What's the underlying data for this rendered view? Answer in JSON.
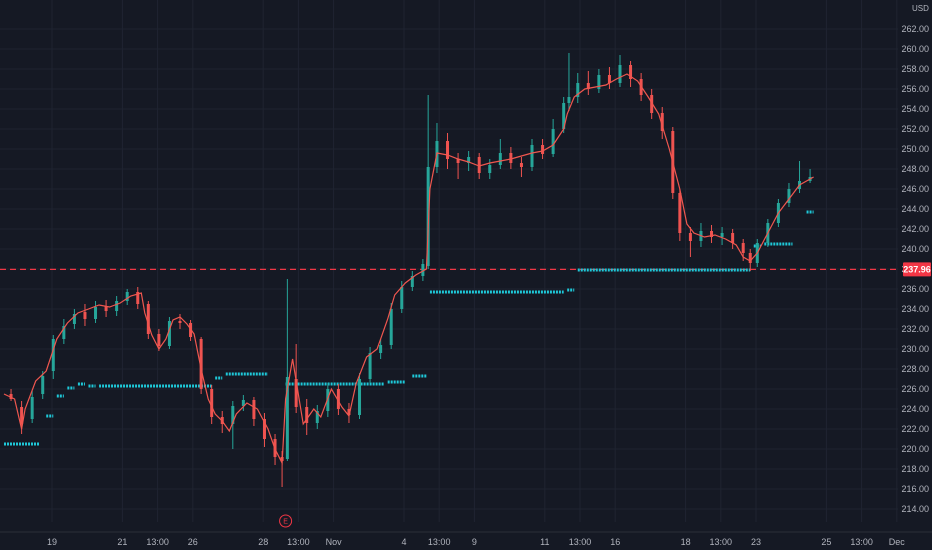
{
  "chart_data": {
    "type": "candlestick",
    "currency_label": "USD",
    "y_axis": {
      "min": 212,
      "max": 264,
      "ticks": [
        "262.00",
        "260.00",
        "258.00",
        "256.00",
        "254.00",
        "252.00",
        "250.00",
        "248.00",
        "246.00",
        "244.00",
        "242.00",
        "240.00",
        "238.00",
        "236.00",
        "234.00",
        "232.00",
        "230.00",
        "228.00",
        "226.00",
        "224.00",
        "222.00",
        "220.00",
        "218.00",
        "216.00",
        "214.00"
      ]
    },
    "x_axis": {
      "ticks": [
        {
          "label": "19",
          "pos": 0
        },
        {
          "label": "21",
          "pos": 2
        },
        {
          "label": "13:00",
          "pos": 3
        },
        {
          "label": "26",
          "pos": 4
        },
        {
          "label": "28",
          "pos": 6
        },
        {
          "label": "13:00",
          "pos": 7
        },
        {
          "label": "Nov",
          "pos": 8
        },
        {
          "label": "4",
          "pos": 10
        },
        {
          "label": "13:00",
          "pos": 11
        },
        {
          "label": "9",
          "pos": 12
        },
        {
          "label": "11",
          "pos": 14
        },
        {
          "label": "13:00",
          "pos": 15
        },
        {
          "label": "16",
          "pos": 16
        },
        {
          "label": "18",
          "pos": 18
        },
        {
          "label": "13:00",
          "pos": 19
        },
        {
          "label": "23",
          "pos": 20
        },
        {
          "label": "25",
          "pos": 22
        },
        {
          "label": "13:00",
          "pos": 23
        },
        {
          "label": "Dec",
          "pos": 24
        }
      ],
      "range": [
        0,
        27
      ]
    },
    "reference_line": {
      "value": 237.96,
      "label": "237.96",
      "color": "#f23645"
    },
    "earnings_marker": {
      "label": "E",
      "pos": 8
    },
    "colors": {
      "up": "#26a69a",
      "down": "#ef5350",
      "line": "#f0574f",
      "dots": "#1ec8d8",
      "grid": "#1f2431"
    },
    "price_path": [
      [
        0.0,
        225.5
      ],
      [
        0.3,
        225.0
      ],
      [
        0.5,
        222.0
      ],
      [
        0.6,
        224.0
      ],
      [
        0.9,
        226.8
      ],
      [
        1.2,
        227.8
      ],
      [
        1.5,
        231.0
      ],
      [
        1.8,
        232.6
      ],
      [
        2.1,
        233.6
      ],
      [
        2.4,
        234.0
      ],
      [
        2.7,
        234.4
      ],
      [
        3.0,
        234.2
      ],
      [
        3.3,
        234.6
      ],
      [
        3.6,
        235.3
      ],
      [
        3.9,
        235.6
      ],
      [
        4.0,
        233.6
      ],
      [
        4.2,
        231.4
      ],
      [
        4.4,
        230.0
      ],
      [
        4.6,
        231.0
      ],
      [
        4.8,
        232.9
      ],
      [
        5.0,
        233.2
      ],
      [
        5.2,
        232.5
      ],
      [
        5.4,
        231.5
      ],
      [
        5.6,
        228.0
      ],
      [
        5.8,
        225.0
      ],
      [
        6.0,
        223.5
      ],
      [
        6.2,
        222.8
      ],
      [
        6.4,
        221.8
      ],
      [
        6.6,
        223.5
      ],
      [
        6.9,
        224.6
      ],
      [
        7.2,
        224.0
      ],
      [
        7.5,
        222.0
      ],
      [
        7.7,
        220.0
      ],
      [
        7.9,
        218.6
      ],
      [
        8.0,
        225.0
      ],
      [
        8.2,
        229.0
      ],
      [
        8.5,
        222.5
      ],
      [
        8.8,
        224.0
      ],
      [
        9.0,
        223.2
      ],
      [
        9.3,
        226.0
      ],
      [
        9.6,
        224.2
      ],
      [
        9.8,
        223.3
      ],
      [
        10.0,
        226.5
      ],
      [
        10.3,
        229.2
      ],
      [
        10.6,
        230.0
      ],
      [
        10.9,
        233.0
      ],
      [
        11.1,
        235.4
      ],
      [
        11.4,
        236.6
      ],
      [
        11.7,
        237.4
      ],
      [
        12.0,
        238.0
      ],
      [
        12.1,
        246.0
      ],
      [
        12.3,
        249.6
      ],
      [
        12.6,
        249.4
      ],
      [
        12.9,
        249.0
      ],
      [
        13.2,
        248.7
      ],
      [
        13.5,
        248.3
      ],
      [
        13.8,
        248.6
      ],
      [
        14.1,
        248.8
      ],
      [
        14.4,
        249.0
      ],
      [
        14.7,
        249.3
      ],
      [
        15.0,
        249.6
      ],
      [
        15.3,
        249.8
      ],
      [
        15.6,
        250.4
      ],
      [
        15.9,
        252.0
      ],
      [
        16.0,
        253.5
      ],
      [
        16.2,
        255.2
      ],
      [
        16.5,
        256.0
      ],
      [
        16.8,
        256.2
      ],
      [
        17.1,
        256.4
      ],
      [
        17.4,
        257.0
      ],
      [
        17.7,
        257.5
      ],
      [
        18.0,
        256.8
      ],
      [
        18.3,
        255.2
      ],
      [
        18.6,
        253.5
      ],
      [
        18.9,
        250.0
      ],
      [
        19.2,
        246.0
      ],
      [
        19.4,
        242.5
      ],
      [
        19.6,
        241.6
      ],
      [
        19.9,
        241.2
      ],
      [
        20.2,
        241.4
      ],
      [
        20.5,
        241.0
      ],
      [
        20.8,
        240.4
      ],
      [
        21.0,
        239.2
      ],
      [
        21.2,
        238.8
      ],
      [
        21.4,
        239.6
      ],
      [
        21.7,
        241.6
      ],
      [
        22.0,
        243.6
      ],
      [
        22.3,
        245.0
      ],
      [
        22.6,
        246.4
      ],
      [
        22.9,
        247.0
      ],
      [
        23.0,
        247.2
      ]
    ],
    "candles": [
      [
        0.2,
        225.5,
        225.0,
        226.0,
        224.8
      ],
      [
        0.5,
        224.2,
        222.5,
        224.8,
        221.5
      ],
      [
        0.8,
        223.0,
        225.2,
        225.8,
        222.6
      ],
      [
        1.1,
        225.5,
        227.3,
        227.8,
        225.0
      ],
      [
        1.4,
        227.8,
        231.0,
        231.4,
        227.0
      ],
      [
        1.7,
        231.0,
        232.3,
        233.0,
        230.5
      ],
      [
        2.0,
        232.5,
        233.5,
        234.0,
        232.0
      ],
      [
        2.3,
        233.7,
        233.0,
        234.5,
        232.3
      ],
      [
        2.6,
        233.0,
        234.2,
        234.8,
        232.6
      ],
      [
        2.9,
        234.3,
        233.8,
        234.9,
        233.2
      ],
      [
        3.2,
        233.8,
        234.8,
        235.3,
        233.3
      ],
      [
        3.5,
        234.8,
        235.7,
        236.0,
        234.4
      ],
      [
        3.8,
        235.7,
        234.5,
        236.2,
        234.0
      ],
      [
        4.1,
        234.5,
        231.5,
        234.8,
        231.0
      ],
      [
        4.4,
        231.5,
        230.3,
        232.0,
        229.8
      ],
      [
        4.7,
        230.3,
        232.8,
        233.2,
        230.0
      ],
      [
        5.0,
        232.8,
        232.6,
        233.5,
        232.0
      ],
      [
        5.3,
        232.6,
        231.2,
        232.9,
        230.8
      ],
      [
        5.6,
        231.0,
        226.0,
        231.2,
        225.5
      ],
      [
        5.9,
        226.0,
        223.2,
        226.4,
        222.5
      ],
      [
        6.2,
        223.2,
        222.5,
        223.8,
        221.6
      ],
      [
        6.5,
        222.5,
        224.3,
        224.8,
        220.0
      ],
      [
        6.8,
        224.3,
        224.9,
        225.4,
        223.8
      ],
      [
        7.1,
        224.9,
        223.0,
        225.2,
        222.3
      ],
      [
        7.4,
        223.0,
        221.0,
        223.6,
        220.2
      ],
      [
        7.7,
        221.0,
        219.2,
        221.5,
        218.4
      ],
      [
        7.9,
        219.2,
        218.8,
        219.8,
        216.2
      ],
      [
        8.05,
        219.0,
        227.2,
        237.0,
        218.8
      ],
      [
        8.3,
        227.0,
        224.2,
        230.5,
        223.6
      ],
      [
        8.6,
        224.2,
        222.6,
        225.0,
        221.4
      ],
      [
        8.9,
        222.6,
        223.8,
        224.4,
        222.0
      ],
      [
        9.2,
        223.8,
        226.0,
        226.6,
        223.2
      ],
      [
        9.5,
        226.0,
        224.0,
        226.5,
        223.4
      ],
      [
        9.8,
        224.0,
        223.4,
        224.6,
        222.6
      ],
      [
        10.1,
        223.4,
        227.0,
        227.6,
        223.0
      ],
      [
        10.4,
        227.0,
        229.6,
        230.2,
        226.6
      ],
      [
        10.7,
        229.6,
        230.4,
        231.0,
        229.0
      ],
      [
        11.0,
        230.4,
        234.0,
        234.6,
        230.0
      ],
      [
        11.3,
        234.0,
        236.2,
        236.8,
        233.6
      ],
      [
        11.6,
        236.2,
        237.3,
        237.8,
        235.8
      ],
      [
        11.9,
        237.3,
        238.5,
        239.0,
        236.8
      ],
      [
        12.05,
        238.3,
        248.2,
        255.4,
        238.0
      ],
      [
        12.3,
        248.2,
        250.8,
        252.6,
        247.6
      ],
      [
        12.6,
        250.8,
        249.0,
        251.6,
        248.0
      ],
      [
        12.9,
        249.0,
        248.6,
        249.6,
        247.0
      ],
      [
        13.2,
        248.6,
        249.2,
        249.8,
        247.8
      ],
      [
        13.5,
        249.2,
        247.6,
        249.6,
        247.0
      ],
      [
        13.8,
        247.6,
        248.4,
        249.0,
        247.0
      ],
      [
        14.1,
        248.4,
        249.6,
        251.0,
        248.0
      ],
      [
        14.4,
        249.6,
        248.6,
        250.2,
        248.0
      ],
      [
        14.7,
        248.6,
        248.2,
        249.2,
        247.2
      ],
      [
        15.0,
        248.2,
        250.4,
        251.0,
        247.8
      ],
      [
        15.3,
        250.4,
        249.5,
        251.0,
        249.0
      ],
      [
        15.6,
        249.5,
        252.0,
        253.0,
        249.2
      ],
      [
        15.9,
        252.0,
        254.6,
        255.2,
        251.6
      ],
      [
        16.05,
        254.6,
        255.2,
        259.6,
        253.8
      ],
      [
        16.3,
        255.2,
        256.6,
        257.6,
        254.6
      ],
      [
        16.6,
        256.6,
        256.0,
        257.8,
        255.4
      ],
      [
        16.9,
        256.0,
        257.4,
        258.0,
        255.6
      ],
      [
        17.2,
        257.4,
        256.6,
        258.2,
        256.0
      ],
      [
        17.5,
        256.6,
        258.4,
        259.4,
        256.2
      ],
      [
        17.8,
        258.4,
        257.0,
        258.8,
        256.2
      ],
      [
        18.1,
        257.0,
        255.4,
        257.6,
        254.8
      ],
      [
        18.4,
        255.4,
        253.6,
        256.0,
        253.0
      ],
      [
        18.7,
        253.6,
        251.8,
        254.2,
        251.0
      ],
      [
        19.0,
        251.8,
        245.6,
        252.2,
        245.0
      ],
      [
        19.2,
        245.6,
        241.6,
        246.0,
        240.8
      ],
      [
        19.5,
        241.6,
        240.8,
        242.2,
        239.2
      ],
      [
        19.8,
        240.8,
        241.8,
        242.6,
        240.2
      ],
      [
        20.1,
        241.8,
        241.2,
        242.4,
        240.6
      ],
      [
        20.4,
        241.2,
        241.6,
        242.2,
        240.4
      ],
      [
        20.7,
        241.6,
        240.6,
        242.0,
        240.0
      ],
      [
        21.0,
        240.6,
        239.6,
        241.0,
        238.8
      ],
      [
        21.2,
        239.6,
        238.6,
        240.0,
        237.8
      ],
      [
        21.4,
        238.6,
        240.6,
        241.0,
        238.2
      ],
      [
        21.7,
        240.6,
        242.6,
        243.0,
        240.2
      ],
      [
        22.0,
        242.6,
        244.6,
        245.0,
        242.2
      ],
      [
        22.3,
        244.6,
        246.0,
        246.6,
        244.2
      ],
      [
        22.6,
        246.0,
        246.8,
        248.8,
        245.6
      ],
      [
        22.9,
        246.8,
        247.2,
        248.0,
        246.6
      ]
    ],
    "stop_dots": [
      [
        0.0,
        1.0,
        220.5
      ],
      [
        1.2,
        1.4,
        223.3
      ],
      [
        1.5,
        1.7,
        225.3
      ],
      [
        1.8,
        2.0,
        226.1
      ],
      [
        2.1,
        2.3,
        226.5
      ],
      [
        2.4,
        2.6,
        226.3
      ],
      [
        2.7,
        5.9,
        226.3
      ],
      [
        6.0,
        6.2,
        227.1
      ],
      [
        6.3,
        7.5,
        227.5
      ],
      [
        8.0,
        10.8,
        226.5
      ],
      [
        10.9,
        11.4,
        226.7
      ],
      [
        11.6,
        12.0,
        227.3
      ],
      [
        12.1,
        15.9,
        235.7
      ],
      [
        16.0,
        16.2,
        235.9
      ],
      [
        16.3,
        21.2,
        237.9
      ],
      [
        21.3,
        21.5,
        240.3
      ],
      [
        21.6,
        22.4,
        240.5
      ],
      [
        22.8,
        23.0,
        243.7
      ]
    ]
  }
}
